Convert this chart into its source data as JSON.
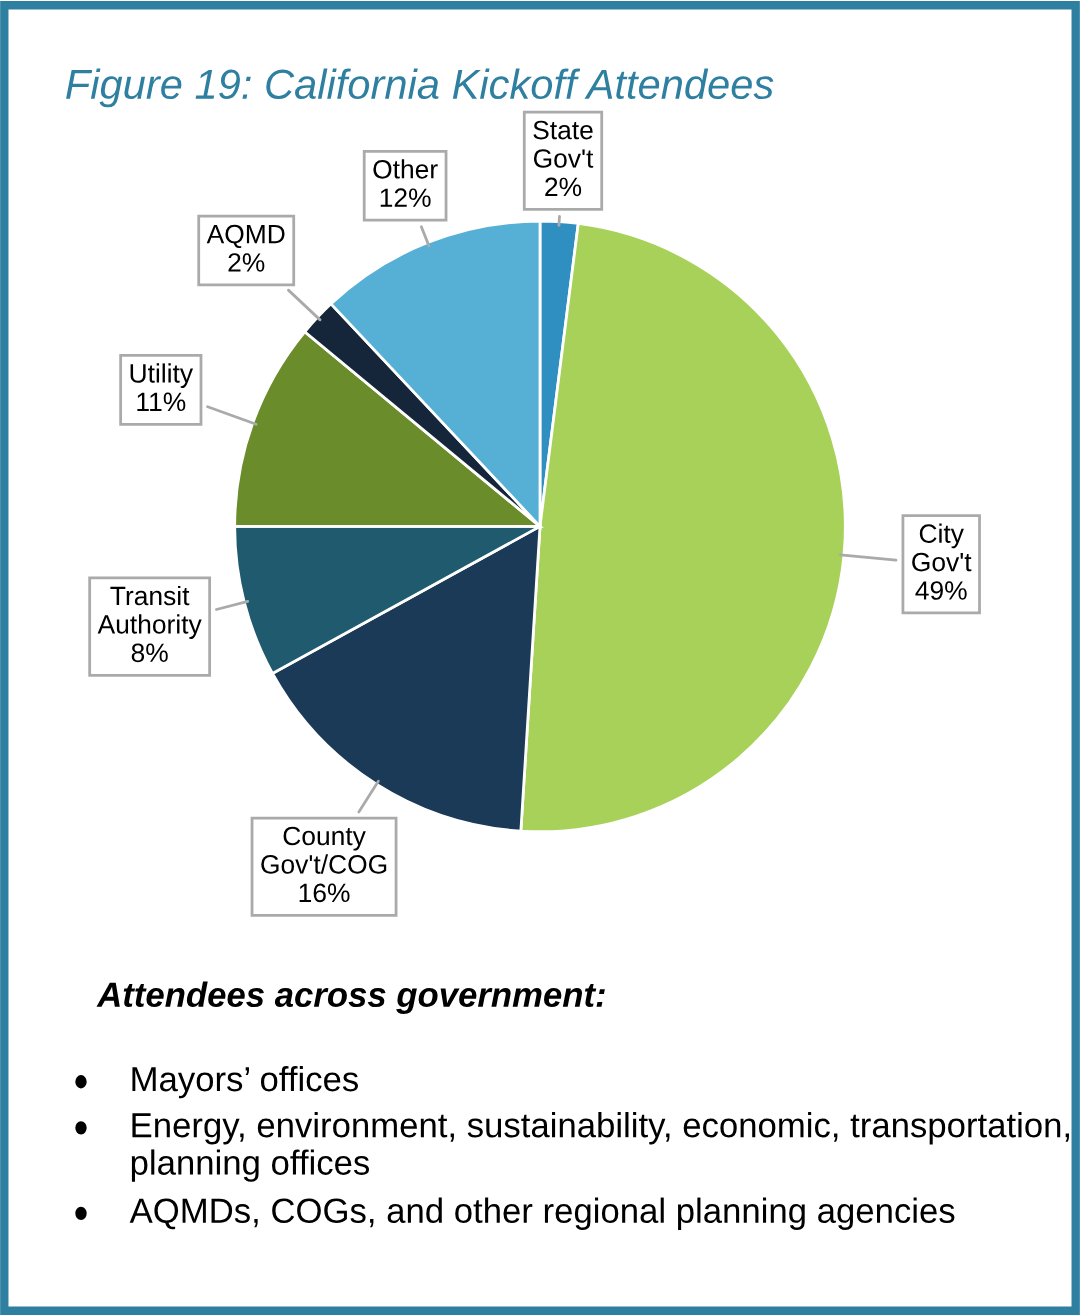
{
  "chart_data": {
    "type": "pie",
    "title": "Figure 19: California Kickoff Attendees",
    "categories": [
      "State Gov't",
      "City Gov't",
      "County Gov't/COG",
      "Transit Authority",
      "Utility",
      "AQMD",
      "Other"
    ],
    "values": [
      2,
      49,
      16,
      8,
      11,
      2,
      12
    ],
    "value_labels": [
      "2%",
      "49%",
      "16%",
      "8%",
      "11%",
      "2%",
      "12%"
    ],
    "colors": [
      "#2e8fc0",
      "#a8d15a",
      "#1b3a57",
      "#1f5a6e",
      "#6b8c2a",
      "#15263a",
      "#56b0d6"
    ],
    "annotations": [
      "Attendees across government:",
      "Mayors’ offices",
      "Energy, environment, sustainability, economic, transportation, planning offices",
      "AQMDs, COGs, and other regional planning agencies"
    ],
    "legend": false
  }
}
